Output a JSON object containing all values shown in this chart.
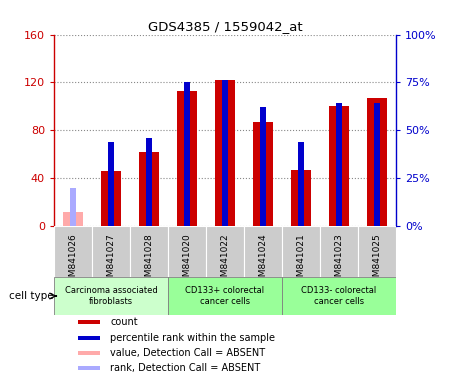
{
  "title": "GDS4385 / 1559042_at",
  "samples": [
    "GSM841026",
    "GSM841027",
    "GSM841028",
    "GSM841020",
    "GSM841022",
    "GSM841024",
    "GSM841021",
    "GSM841023",
    "GSM841025"
  ],
  "count_values": [
    null,
    46,
    62,
    113,
    122,
    87,
    47,
    100,
    107
  ],
  "count_absent": [
    12,
    null,
    null,
    null,
    null,
    null,
    null,
    null,
    null
  ],
  "rank_values": [
    null,
    44,
    46,
    75,
    76,
    62,
    44,
    64,
    64
  ],
  "rank_absent": [
    20,
    null,
    null,
    null,
    null,
    null,
    null,
    null,
    null
  ],
  "ylim_left": [
    0,
    160
  ],
  "ylim_right": [
    0,
    100
  ],
  "yticks_left": [
    0,
    40,
    80,
    120,
    160
  ],
  "yticks_left_labels": [
    "0",
    "40",
    "80",
    "120",
    "160"
  ],
  "yticks_right": [
    0,
    25,
    50,
    75,
    100
  ],
  "yticks_right_labels": [
    "0%",
    "25%",
    "50%",
    "75%",
    "100%"
  ],
  "count_color": "#cc0000",
  "rank_color": "#0000cc",
  "count_absent_color": "#ffaaaa",
  "rank_absent_color": "#aaaaff",
  "bg_color": "#ffffff",
  "grid_color": "#888888",
  "sample_bg": "#cccccc",
  "group1_color": "#ccffcc",
  "group2_color": "#99ff99",
  "group_configs": [
    {
      "label": "Carcinoma associated\nfibroblasts",
      "start": 0,
      "end": 2,
      "color": "#ccffcc"
    },
    {
      "label": "CD133+ colorectal\ncancer cells",
      "start": 3,
      "end": 5,
      "color": "#99ff99"
    },
    {
      "label": "CD133- colorectal\ncancer cells",
      "start": 6,
      "end": 8,
      "color": "#99ff99"
    }
  ],
  "legend_items": [
    {
      "label": "count",
      "color": "#cc0000"
    },
    {
      "label": "percentile rank within the sample",
      "color": "#0000cc"
    },
    {
      "label": "value, Detection Call = ABSENT",
      "color": "#ffaaaa"
    },
    {
      "label": "rank, Detection Call = ABSENT",
      "color": "#aaaaff"
    }
  ],
  "cell_type_label": "cell type"
}
